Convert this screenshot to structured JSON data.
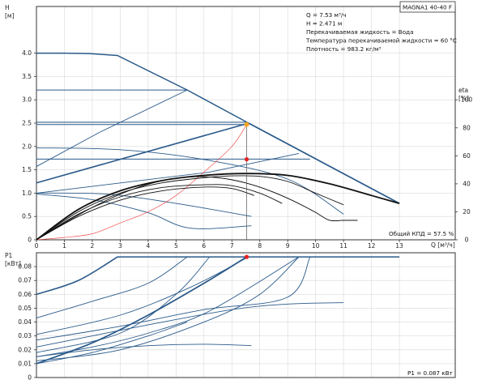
{
  "chart_data": [
    {
      "type": "line",
      "ylabel_text": "H",
      "ylabel_unit": "[м]",
      "y2label_text": "eta",
      "y2label_unit": "[%]",
      "xlabel": "Q [м³/ч]",
      "xlim": [
        0,
        15
      ],
      "ylim": [
        0,
        5
      ],
      "x_ticks": [
        "0",
        "1",
        "2",
        "3",
        "4",
        "5",
        "6",
        "7",
        "8",
        "9",
        "10",
        "11",
        "12",
        "13"
      ],
      "y_ticks": [
        "0",
        "0.5",
        "1.0",
        "1.5",
        "2.0",
        "2.5",
        "3.0",
        "3.5",
        "4.0"
      ],
      "y2lim": [
        0,
        166.7
      ],
      "y2_ticks": [
        "0",
        "20",
        "40",
        "60",
        "80",
        "100"
      ],
      "title_box": "MAGNA1 40-40 F",
      "info_lines": [
        "Q = 7.53 м³/ч",
        "H = 2.471 м",
        "Перекачиваемая жидкость = Вода",
        "Температура перекачиваемой жидкости = 60 °C",
        "Плотность = 983.2 кг/м³"
      ],
      "efficiency_label": "Общий КПД = 57.5 %",
      "duty_point": {
        "q": 7.53,
        "h": 2.471
      },
      "eff_point": {
        "q": 7.53,
        "eta": 57.5
      },
      "series": [
        {
          "values": [
            [
              0,
              1.57
            ],
            [
              2.25,
              2.3
            ],
            [
              5.4,
              3.21
            ]
          ]
        },
        {
          "values": [
            [
              0,
              1.0
            ],
            [
              6.2,
              1.45
            ],
            [
              9.4,
              1.85
            ]
          ]
        },
        {
          "values": [
            [
              0,
              1.0
            ],
            [
              2.5,
              0.98
            ],
            [
              5.0,
              0.78
            ],
            [
              7.7,
              0.5
            ]
          ]
        },
        {
          "values": [
            [
              0,
              1.97
            ],
            [
              3,
              1.93
            ],
            [
              6,
              1.72
            ],
            [
              9,
              1.3
            ],
            [
              11,
              0.55
            ]
          ]
        },
        {
          "values": [
            [
              0,
              0.98
            ],
            [
              2,
              0.86
            ],
            [
              4,
              0.58
            ],
            [
              5.5,
              0.25
            ],
            [
              7.7,
              0.3
            ]
          ]
        },
        {
          "values": [
            [
              0,
              1.22
            ],
            [
              7.6,
              2.5
            ],
            [
              13,
              0.78
            ]
          ]
        },
        {
          "values": [
            [
              0,
              4.0
            ],
            [
              1.0,
              4.0
            ],
            [
              1.9,
              3.99
            ],
            [
              2.9,
              3.95
            ],
            [
              5.4,
              3.21
            ],
            [
              7.6,
              2.5
            ],
            [
              13,
              0.78
            ]
          ]
        },
        {
          "values": [
            [
              0,
              0
            ],
            [
              1,
              0.05
            ],
            [
              2,
              0.13
            ],
            [
              3,
              0.36
            ],
            [
              4,
              0.6
            ],
            [
              5,
              0.95
            ],
            [
              6,
              1.45
            ],
            [
              7,
              2.0
            ],
            [
              7.53,
              2.47
            ]
          ]
        },
        {
          "values": [
            [
              0,
              0
            ],
            [
              1.5,
              0.6
            ],
            [
              3,
              1.0
            ],
            [
              4.5,
              1.22
            ],
            [
              6,
              1.33
            ],
            [
              7,
              1.37
            ],
            [
              8,
              1.36
            ],
            [
              9,
              1.25
            ],
            [
              10,
              1.0
            ],
            [
              11,
              0.75
            ]
          ]
        },
        {
          "values": [
            [
              0,
              0
            ],
            [
              1.5,
              0.65
            ],
            [
              3,
              1.05
            ],
            [
              4.5,
              1.27
            ],
            [
              6,
              1.38
            ],
            [
              7.5,
              1.42
            ],
            [
              9,
              1.38
            ],
            [
              10.5,
              1.2
            ],
            [
              12,
              0.95
            ],
            [
              13,
              0.78
            ]
          ]
        },
        {
          "values": [
            [
              0,
              0
            ],
            [
              1.5,
              0.55
            ],
            [
              3,
              0.92
            ],
            [
              4.5,
              1.12
            ],
            [
              6,
              1.18
            ],
            [
              7,
              1.16
            ],
            [
              8,
              1.0
            ],
            [
              8.8,
              0.78
            ]
          ]
        },
        {
          "values": [
            [
              0,
              0
            ],
            [
              1.5,
              0.5
            ],
            [
              3,
              0.85
            ],
            [
              4.5,
              1.05
            ],
            [
              6,
              1.13
            ],
            [
              7,
              1.1
            ],
            [
              7.8,
              0.95
            ]
          ]
        }
      ],
      "h_lines": [
        {
          "y": 4.0,
          "x_end": 1.0
        },
        {
          "y": 3.21,
          "x_end": 5.4
        },
        {
          "y": 2.52,
          "x_end": 7.55
        },
        {
          "y": 2.47,
          "x_end": 7.53
        },
        {
          "y": 1.73,
          "x_end": 9.8
        }
      ]
    },
    {
      "type": "line",
      "ylabel_text": "P1",
      "ylabel_unit": "[кВт]",
      "xlim": [
        0,
        15
      ],
      "ylim": [
        0,
        0.09
      ],
      "y_ticks": [
        "0",
        "0.01",
        "0.02",
        "0.03",
        "0.04",
        "0.05",
        "0.06",
        "0.07",
        "0.08"
      ],
      "power_label": "P1 = 0.087 кВт",
      "duty_point": {
        "q": 7.53,
        "p": 0.087
      },
      "series": [
        {
          "values": [
            [
              0,
              0.06
            ],
            [
              1.5,
              0.07
            ],
            [
              2.9,
              0.087
            ],
            [
              13,
              0.087
            ]
          ]
        },
        {
          "values": [
            [
              0,
              0.043
            ],
            [
              2,
              0.055
            ],
            [
              4,
              0.068
            ],
            [
              5.4,
              0.087
            ]
          ]
        },
        {
          "values": [
            [
              0,
              0.031
            ],
            [
              3,
              0.045
            ],
            [
              5.5,
              0.065
            ],
            [
              7.6,
              0.087
            ]
          ]
        },
        {
          "values": [
            [
              0,
              0.027
            ],
            [
              3,
              0.037
            ],
            [
              6,
              0.049
            ],
            [
              9,
              0.058
            ],
            [
              9.8,
              0.087
            ]
          ]
        },
        {
          "values": [
            [
              0,
              0.022
            ],
            [
              4,
              0.038
            ],
            [
              7,
              0.049
            ],
            [
              9,
              0.053
            ],
            [
              11,
              0.054
            ]
          ]
        },
        {
          "values": [
            [
              0,
              0.015
            ],
            [
              2,
              0.02
            ],
            [
              4,
              0.023
            ],
            [
              6,
              0.024
            ],
            [
              7.7,
              0.023
            ]
          ]
        },
        {
          "values": [
            [
              0,
              0.01
            ],
            [
              2,
              0.025
            ],
            [
              4,
              0.045
            ],
            [
              6,
              0.068
            ],
            [
              7.53,
              0.087
            ]
          ]
        },
        {
          "values": [
            [
              0,
              0.01
            ],
            [
              2,
              0.018
            ],
            [
              4,
              0.03
            ],
            [
              5.4,
              0.04
            ]
          ]
        },
        {
          "values": [
            [
              0,
              0.015
            ],
            [
              2,
              0.022
            ],
            [
              4,
              0.032
            ],
            [
              6.2,
              0.048
            ],
            [
              9.4,
              0.087
            ]
          ]
        },
        {
          "values": [
            [
              0,
              0.018
            ],
            [
              3,
              0.032
            ],
            [
              5,
              0.06
            ],
            [
              6.2,
              0.087
            ]
          ]
        },
        {
          "values": [
            [
              0,
              0.012
            ],
            [
              3,
              0.02
            ],
            [
              6,
              0.04
            ],
            [
              8,
              0.06
            ],
            [
              9.4,
              0.087
            ]
          ]
        }
      ]
    }
  ]
}
